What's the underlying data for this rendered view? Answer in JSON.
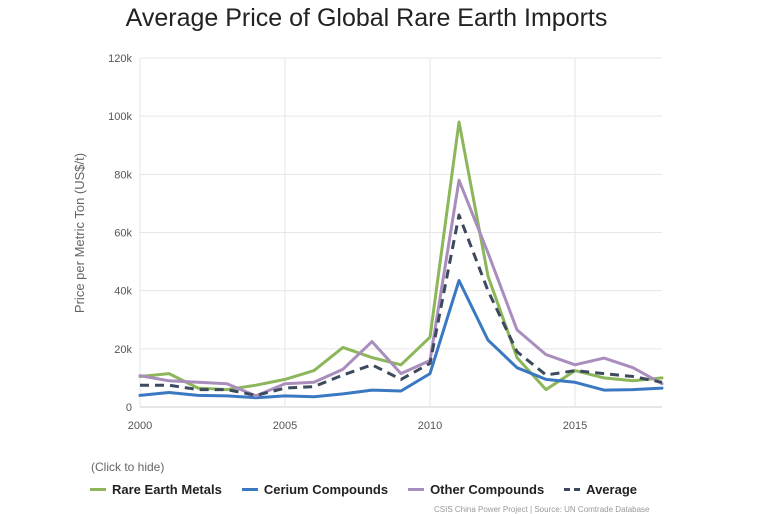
{
  "title": "Average Price of Global Rare Earth Imports",
  "legend_hint": "(Click to hide)",
  "source": "CSIS China Power Project | Source: UN Comtrade Database",
  "chart_data": {
    "type": "line",
    "title": "Average Price of Global Rare Earth Imports",
    "xlabel": "",
    "ylabel": "Price per Metric Ton (US$/t)",
    "xlim": [
      2000,
      2018
    ],
    "ylim": [
      0,
      120000
    ],
    "x_ticks": [
      2000,
      2005,
      2010,
      2015
    ],
    "x_tick_labels": [
      "2000",
      "2005",
      "2010",
      "2015"
    ],
    "y_ticks": [
      0,
      20000,
      40000,
      60000,
      80000,
      100000,
      120000
    ],
    "y_tick_labels": [
      "0",
      "20k",
      "40k",
      "60k",
      "80k",
      "100k",
      "120k"
    ],
    "grid": true,
    "legend_position": "bottom",
    "x": [
      2000,
      2001,
      2002,
      2003,
      2004,
      2005,
      2006,
      2007,
      2008,
      2009,
      2010,
      2011,
      2012,
      2013,
      2014,
      2015,
      2016,
      2017,
      2018
    ],
    "series": [
      {
        "name": "Rare Earth Metals",
        "color": "#8cb65a",
        "dashed": false,
        "values": [
          10500,
          11500,
          6500,
          6000,
          7500,
          9500,
          12500,
          20500,
          17000,
          14500,
          24000,
          98000,
          45000,
          17000,
          6000,
          12500,
          10000,
          9000,
          10000
        ]
      },
      {
        "name": "Cerium Compounds",
        "color": "#3a78c2",
        "dashed": false,
        "values": [
          4000,
          5000,
          4000,
          3800,
          3200,
          3800,
          3500,
          4500,
          5800,
          5500,
          11500,
          43500,
          23000,
          13500,
          9500,
          8500,
          5800,
          6000,
          6500
        ]
      },
      {
        "name": "Other Compounds",
        "color": "#a98dbd",
        "dashed": false,
        "values": [
          10800,
          9000,
          8500,
          8000,
          3800,
          8000,
          8500,
          13000,
          22500,
          11500,
          16000,
          78000,
          53000,
          26500,
          18000,
          14500,
          16800,
          13500,
          8000
        ]
      },
      {
        "name": "Average",
        "color": "#3d4a5e",
        "dashed": true,
        "values": [
          7500,
          7500,
          6000,
          6000,
          4000,
          6500,
          7000,
          11000,
          14500,
          9500,
          15000,
          66000,
          40000,
          19000,
          11000,
          12500,
          11500,
          10500,
          8500
        ]
      }
    ]
  }
}
